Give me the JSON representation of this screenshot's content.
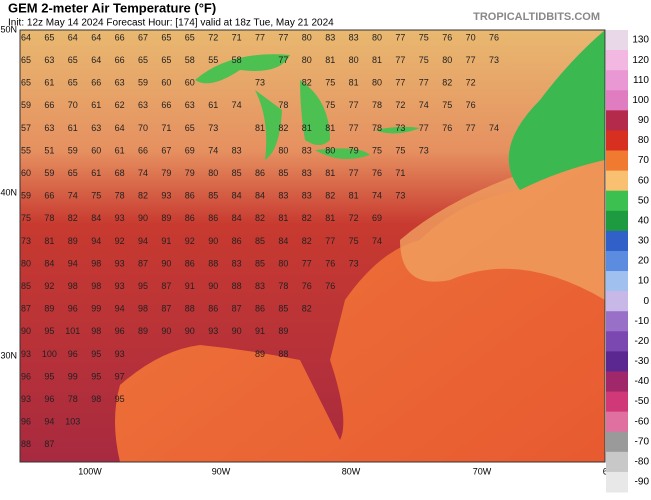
{
  "header": {
    "title": "GEM 2-meter Air Temperature (°F)",
    "subtitle": "Init: 12z May 14 2024   Forecast Hour: [174]   valid at 18z Tue, May 21 2024",
    "watermark": "TROPICALTIDBITS.COM"
  },
  "map": {
    "lat_labels": [
      "50N",
      "40N",
      "30N"
    ],
    "lon_labels": [
      "100W",
      "90W",
      "80W",
      "70W",
      "60W"
    ],
    "temperature_rows": [
      [
        64,
        65,
        64,
        64,
        66,
        67,
        65,
        65,
        72,
        71,
        77,
        77,
        80,
        83,
        83,
        80,
        77,
        75,
        76,
        70,
        76
      ],
      [
        65,
        63,
        65,
        64,
        66,
        65,
        65,
        58,
        55,
        58,
        null,
        77,
        80,
        81,
        80,
        81,
        77,
        75,
        80,
        77,
        73
      ],
      [
        65,
        61,
        65,
        66,
        63,
        59,
        60,
        60,
        null,
        null,
        73,
        null,
        82,
        75,
        81,
        80,
        77,
        77,
        82,
        72
      ],
      [
        59,
        66,
        70,
        61,
        62,
        63,
        66,
        63,
        61,
        74,
        null,
        78,
        null,
        75,
        77,
        78,
        72,
        74,
        75,
        76
      ],
      [
        57,
        63,
        61,
        63,
        64,
        70,
        71,
        65,
        73,
        null,
        81,
        82,
        81,
        81,
        77,
        78,
        73,
        77,
        76,
        77,
        74
      ],
      [
        55,
        51,
        59,
        60,
        61,
        66,
        67,
        69,
        74,
        83,
        null,
        80,
        83,
        80,
        79,
        75,
        75,
        73
      ],
      [
        60,
        59,
        65,
        61,
        68,
        74,
        79,
        79,
        80,
        85,
        86,
        85,
        83,
        81,
        77,
        76,
        71
      ],
      [
        59,
        66,
        74,
        75,
        78,
        82,
        93,
        86,
        85,
        84,
        84,
        83,
        83,
        82,
        81,
        74,
        73
      ],
      [
        75,
        78,
        82,
        84,
        93,
        90,
        89,
        86,
        86,
        84,
        82,
        81,
        82,
        81,
        72,
        69
      ],
      [
        73,
        81,
        89,
        94,
        92,
        94,
        91,
        92,
        90,
        86,
        85,
        84,
        82,
        77,
        75,
        74
      ],
      [
        80,
        84,
        94,
        98,
        93,
        87,
        90,
        86,
        88,
        83,
        85,
        80,
        77,
        76,
        73
      ],
      [
        85,
        92,
        98,
        98,
        93,
        95,
        87,
        91,
        90,
        88,
        83,
        78,
        76,
        76
      ],
      [
        87,
        89,
        96,
        99,
        94,
        98,
        87,
        88,
        86,
        87,
        86,
        85,
        82
      ],
      [
        90,
        95,
        101,
        98,
        96,
        89,
        90,
        90,
        93,
        90,
        91,
        89
      ],
      [
        93,
        100,
        96,
        95,
        93,
        null,
        null,
        null,
        null,
        null,
        89,
        88
      ],
      [
        96,
        95,
        99,
        95,
        97
      ],
      [
        93,
        96,
        78,
        98,
        95
      ],
      [
        96,
        94,
        103
      ],
      [
        88,
        87
      ]
    ]
  },
  "colorbar": {
    "ticks": [
      130,
      120,
      110,
      100,
      90,
      80,
      70,
      60,
      50,
      40,
      30,
      20,
      10,
      0,
      -10,
      -20,
      -30,
      -40,
      -50,
      -60,
      -70,
      -80,
      -90
    ],
    "colors": [
      "#e8d8e8",
      "#f2b8e2",
      "#ea98d4",
      "#e07cc0",
      "#b42a4a",
      "#d83020",
      "#f07a30",
      "#f8c070",
      "#3cc050",
      "#1e9a40",
      "#3060c8",
      "#5c8ce0",
      "#a0c0f0",
      "#c8b8e8",
      "#9870c8",
      "#7a48b0",
      "#5a2890",
      "#a0286a",
      "#d03878",
      "#e070a0",
      "#9a9a9a",
      "#c8c8c8",
      "#e8e8e8"
    ]
  }
}
